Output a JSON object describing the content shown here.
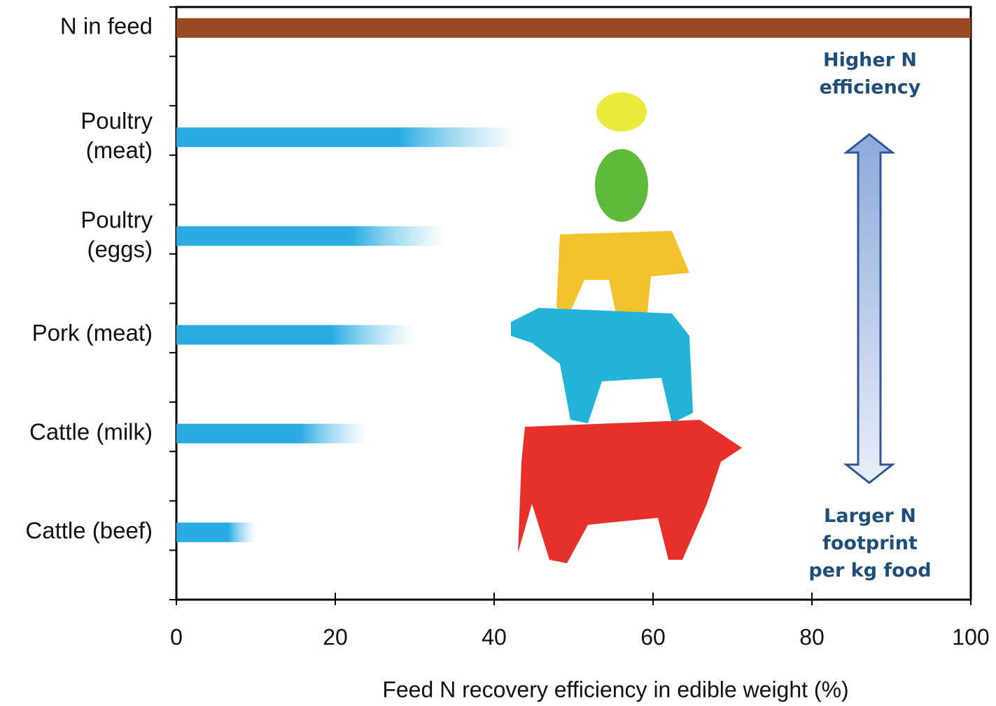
{
  "chart_data": {
    "type": "bar",
    "orientation": "horizontal",
    "xlabel": "Feed N recovery efficiency in edible weight (%)",
    "categories": [
      "N in feed",
      "Poultry\n(meat)",
      "Poultry\n(eggs)",
      "Pork (meat)",
      "Cattle (milk)",
      "Cattle (beef)"
    ],
    "values": [
      100,
      43,
      34,
      30,
      24,
      10
    ],
    "colors": [
      "#9a4a22",
      "#29abe2",
      "#29abe2",
      "#29abe2",
      "#29abe2",
      "#29abe2"
    ],
    "xlim": [
      0,
      100
    ],
    "xticks": [
      0,
      20,
      40,
      60,
      80,
      100
    ],
    "annotations": [
      "Higher N\nefficiency",
      "Larger N\nfootprint\nper kg food"
    ]
  }
}
